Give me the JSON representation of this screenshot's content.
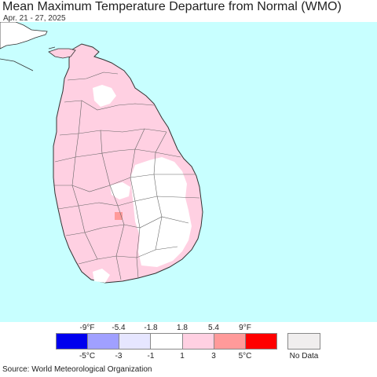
{
  "header": {
    "title": "Mean Maximum Temperature Departure from Normal (WMO)",
    "subtitle": "Apr. 21 - 27, 2025"
  },
  "map": {
    "ocean_color": "#c8ffff",
    "land_base_color": "#ffd0e2",
    "boundary_color": "#555555"
  },
  "legend": {
    "fahrenheit_labels": [
      "-9°F",
      "-5.4",
      "-1.8",
      "1.8",
      "5.4",
      "9°F"
    ],
    "celsius_labels": [
      "-5°C",
      "-3",
      "-1",
      "1",
      "3",
      "5°C"
    ],
    "colors": [
      "#0000ee",
      "#a0a0ff",
      "#e6e6ff",
      "#ffffff",
      "#ffd0e2",
      "#ff9a9a",
      "#ff0000"
    ],
    "no_data_label": "No Data",
    "no_data_color": "#f0eeee"
  },
  "footer": {
    "source": "Source: World Meteorological Organization"
  }
}
